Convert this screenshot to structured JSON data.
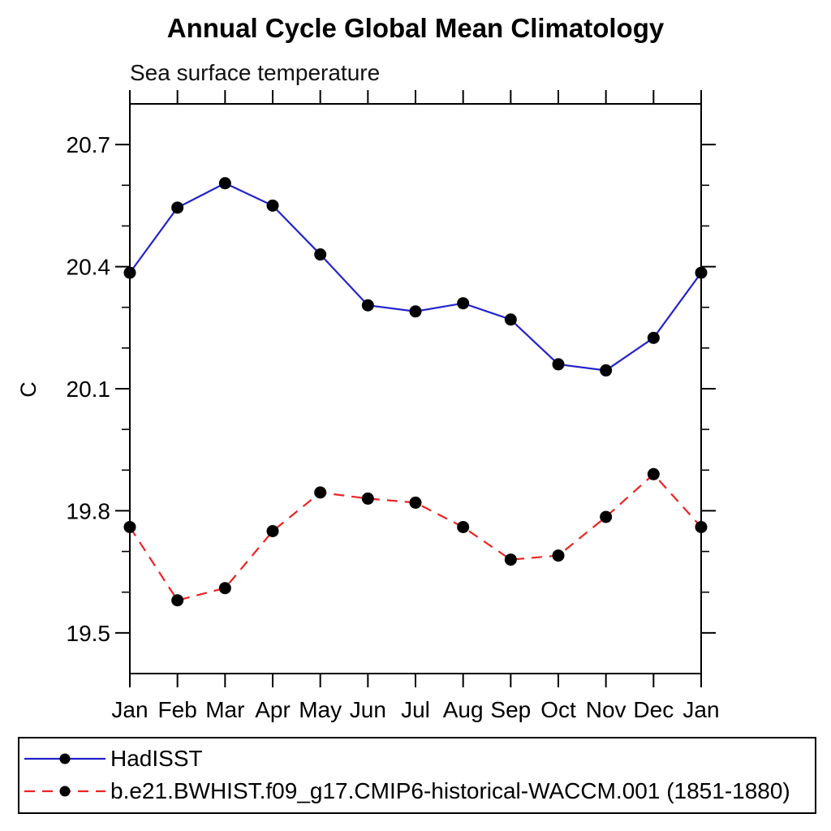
{
  "header": {
    "title": "Annual Cycle Global Mean Climatology",
    "subtitle": "Sea surface temperature"
  },
  "chart_data": {
    "type": "line",
    "title": "Annual Cycle Global Mean Climatology",
    "subtitle": "Sea surface temperature",
    "xlabel": "",
    "ylabel": "C",
    "categories": [
      "Jan",
      "Feb",
      "Mar",
      "Apr",
      "May",
      "Jun",
      "Jul",
      "Aug",
      "Sep",
      "Oct",
      "Nov",
      "Dec",
      "Jan"
    ],
    "ylim": [
      19.4,
      20.8
    ],
    "y_major_ticks": [
      19.5,
      19.8,
      20.1,
      20.4,
      20.7
    ],
    "y_minor_step": 0.1,
    "grid": false,
    "legend_position": "bottom",
    "marker": "filled-circle",
    "marker_color": "#000000",
    "axis_color": "#000000",
    "background_color": "#ffffff",
    "series": [
      {
        "name": "HadISST",
        "color": "#2222cc",
        "style": "solid",
        "values": [
          20.385,
          20.545,
          20.605,
          20.55,
          20.43,
          20.305,
          20.29,
          20.31,
          20.27,
          20.16,
          20.145,
          20.225,
          20.385
        ]
      },
      {
        "name": "b.e21.BWHIST.f09_g17.CMIP6-historical-WACCM.001 (1851-1880)",
        "color": "#ee2222",
        "style": "dashed",
        "values": [
          19.76,
          19.58,
          19.61,
          19.75,
          19.845,
          19.83,
          19.82,
          19.76,
          19.68,
          19.69,
          19.785,
          19.89,
          19.76
        ]
      }
    ]
  }
}
